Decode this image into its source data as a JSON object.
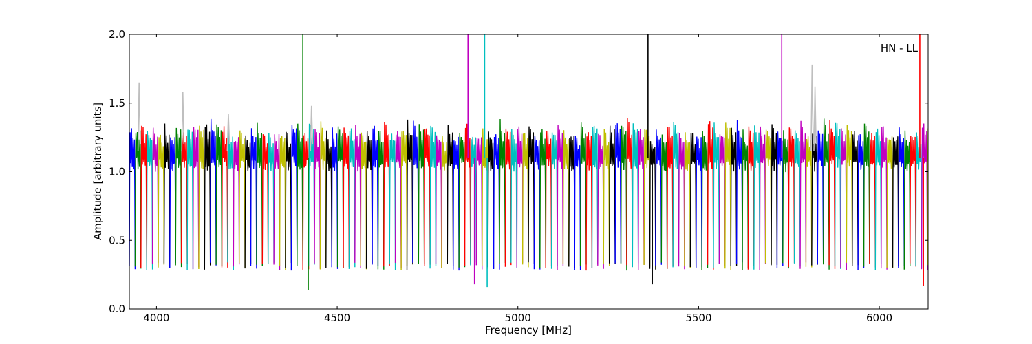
{
  "chart_data": {
    "type": "line",
    "title": "",
    "annotation": "HN - LL",
    "xlabel": "Frequency [MHz]",
    "ylabel": "Amplitude [arbitrary units]",
    "xlim": [
      3925,
      6135
    ],
    "ylim": [
      0.0,
      2.0
    ],
    "x_ticks": [
      4000,
      4500,
      5000,
      5500,
      6000
    ],
    "x_tick_labels": [
      "4000",
      "4500",
      "5000",
      "5500",
      "6000"
    ],
    "y_ticks": [
      0.0,
      0.5,
      1.0,
      1.5,
      2.0
    ],
    "y_tick_labels": [
      "0.0",
      "0.5",
      "1.0",
      "1.5",
      "2.0"
    ],
    "grid": false,
    "legend": "none",
    "color_cycle": [
      "#0000ff",
      "#008000",
      "#ff0000",
      "#00bfbf",
      "#bf00bf",
      "#bfbf00",
      "#000000"
    ],
    "background_trace_color": "#bfbfbf",
    "channel_width_mhz": 16,
    "channel_start_mhz": 3925,
    "channel_profile": {
      "description": "bandpass response per channel",
      "offsets_mhz": [
        0,
        1,
        2,
        3,
        4,
        5,
        6,
        7,
        8,
        9,
        10,
        11,
        12,
        13,
        14,
        15,
        16
      ],
      "amplitude": [
        0.28,
        1.0,
        1.3,
        1.18,
        1.06,
        1.14,
        1.28,
        1.12,
        1.04,
        1.1,
        1.22,
        1.1,
        1.05,
        1.12,
        1.25,
        0.85,
        0.28
      ]
    },
    "spikes": [
      {
        "x": 4405,
        "y": 2.0,
        "color": "#008000"
      },
      {
        "x": 4420,
        "y": 0.14,
        "color": "#008000"
      },
      {
        "x": 4862,
        "y": 2.0,
        "color": "#bf00bf"
      },
      {
        "x": 4880,
        "y": 0.18,
        "color": "#bf00bf"
      },
      {
        "x": 4908,
        "y": 2.0,
        "color": "#00bfbf"
      },
      {
        "x": 4915,
        "y": 0.16,
        "color": "#00bfbf"
      },
      {
        "x": 5360,
        "y": 2.0,
        "color": "#000000"
      },
      {
        "x": 5372,
        "y": 0.18,
        "color": "#000000"
      },
      {
        "x": 5730,
        "y": 2.0,
        "color": "#bf00bf"
      },
      {
        "x": 6112,
        "y": 2.0,
        "color": "#ff0000"
      },
      {
        "x": 6122,
        "y": 0.17,
        "color": "#ff0000"
      }
    ],
    "gray_peaks": [
      {
        "x": 3953,
        "y": 1.65
      },
      {
        "x": 4074,
        "y": 1.58
      },
      {
        "x": 4200,
        "y": 1.42
      },
      {
        "x": 4430,
        "y": 1.48
      },
      {
        "x": 5815,
        "y": 1.78
      },
      {
        "x": 5823,
        "y": 1.62
      }
    ]
  }
}
